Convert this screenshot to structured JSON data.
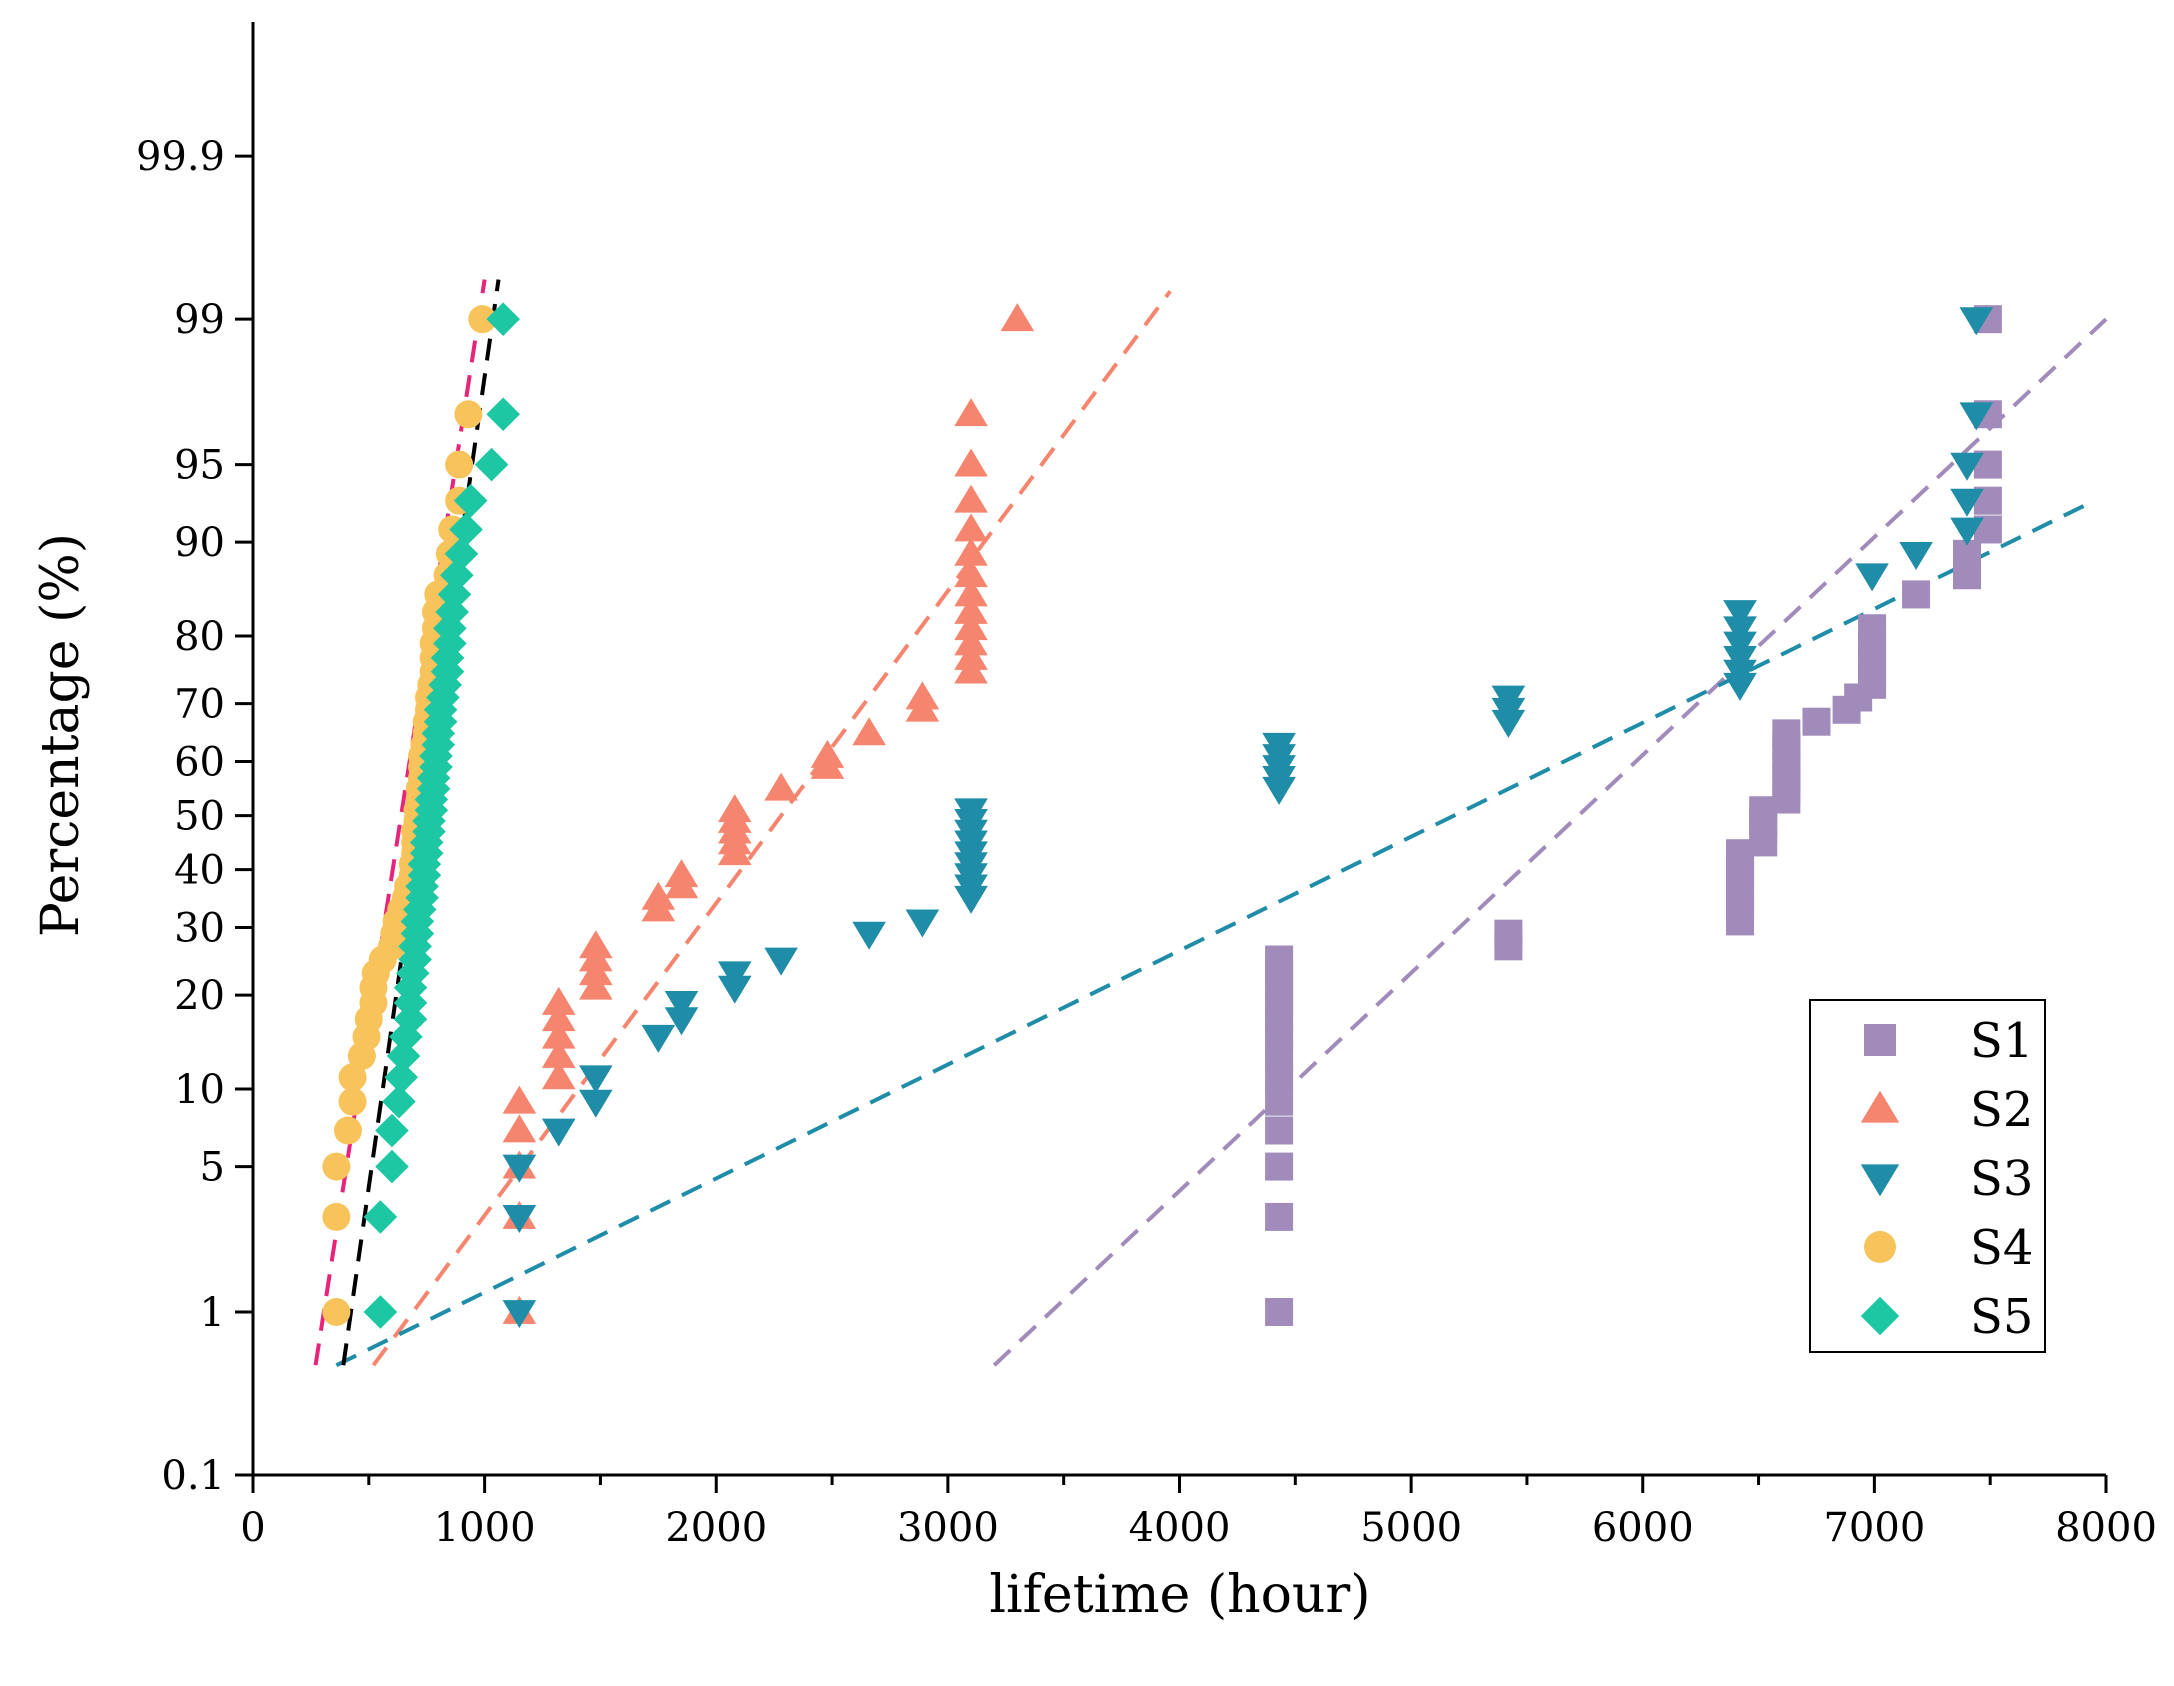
{
  "chart_data": {
    "type": "scatter",
    "title": "",
    "xlabel": "lifetime (hour)",
    "ylabel": "Percentage (%)",
    "xlim": [
      0,
      8000
    ],
    "x_ticks": [
      {
        "value": 0,
        "label": "0"
      },
      {
        "value": 1000,
        "label": "1000"
      },
      {
        "value": 2000,
        "label": "2000"
      },
      {
        "value": 3000,
        "label": "3000"
      },
      {
        "value": 4000,
        "label": "4000"
      },
      {
        "value": 5000,
        "label": "5000"
      },
      {
        "value": 6000,
        "label": "6000"
      },
      {
        "value": 7000,
        "label": "7000"
      },
      {
        "value": 8000,
        "label": "8000"
      }
    ],
    "y_scale": "probability (normal)",
    "ylim": [
      0.1,
      99.99
    ],
    "y_ticks": [
      {
        "value": 0.1,
        "label": "0.1"
      },
      {
        "value": 1,
        "label": "1"
      },
      {
        "value": 5,
        "label": "5"
      },
      {
        "value": 10,
        "label": "10"
      },
      {
        "value": 20,
        "label": "20"
      },
      {
        "value": 30,
        "label": "30"
      },
      {
        "value": 40,
        "label": "40"
      },
      {
        "value": 50,
        "label": "50"
      },
      {
        "value": 60,
        "label": "60"
      },
      {
        "value": 70,
        "label": "70"
      },
      {
        "value": 80,
        "label": "80"
      },
      {
        "value": 90,
        "label": "90"
      },
      {
        "value": 95,
        "label": "95"
      },
      {
        "value": 99,
        "label": "99"
      },
      {
        "value": 99.9,
        "label": "99.9"
      }
    ],
    "legend_position": "bottom-right",
    "series": [
      {
        "name": "S1",
        "marker": "square",
        "color": "#A08BBA",
        "points": [
          [
            4430,
            1
          ],
          [
            4430,
            3
          ],
          [
            4430,
            5
          ],
          [
            4430,
            7
          ],
          [
            4430,
            9
          ],
          [
            4430,
            11
          ],
          [
            4430,
            13
          ],
          [
            4430,
            15
          ],
          [
            4430,
            17
          ],
          [
            4430,
            19
          ],
          [
            4430,
            21
          ],
          [
            4430,
            23
          ],
          [
            4430,
            25
          ],
          [
            5420,
            27
          ],
          [
            5420,
            29
          ],
          [
            6420,
            31
          ],
          [
            6420,
            33
          ],
          [
            6420,
            35
          ],
          [
            6420,
            37
          ],
          [
            6420,
            39
          ],
          [
            6420,
            41
          ],
          [
            6420,
            43
          ],
          [
            6520,
            45
          ],
          [
            6520,
            47
          ],
          [
            6520,
            49
          ],
          [
            6520,
            51
          ],
          [
            6620,
            53
          ],
          [
            6620,
            55
          ],
          [
            6620,
            57
          ],
          [
            6620,
            59
          ],
          [
            6620,
            61
          ],
          [
            6620,
            63
          ],
          [
            6620,
            65
          ],
          [
            6750,
            67
          ],
          [
            6880,
            69
          ],
          [
            6930,
            71
          ],
          [
            6990,
            73
          ],
          [
            6990,
            75
          ],
          [
            6990,
            77
          ],
          [
            6990,
            79
          ],
          [
            6990,
            81
          ],
          [
            7180,
            85
          ],
          [
            7400,
            87
          ],
          [
            7400,
            89
          ],
          [
            7490,
            91
          ],
          [
            7490,
            93
          ],
          [
            7490,
            95
          ],
          [
            7490,
            97
          ],
          [
            7490,
            99
          ]
        ],
        "fit": {
          "x1": 3200,
          "p1": 0.5,
          "x2": 8000,
          "p2": 99
        }
      },
      {
        "name": "S2",
        "marker": "triangle-up",
        "color": "#F5856E",
        "points": [
          [
            1150,
            1
          ],
          [
            1150,
            3
          ],
          [
            1150,
            5
          ],
          [
            1150,
            7
          ],
          [
            1150,
            9
          ],
          [
            1320,
            11
          ],
          [
            1320,
            13
          ],
          [
            1320,
            15
          ],
          [
            1320,
            17
          ],
          [
            1320,
            19
          ],
          [
            1480,
            21
          ],
          [
            1480,
            23
          ],
          [
            1480,
            25
          ],
          [
            1480,
            27
          ],
          [
            1750,
            33
          ],
          [
            1750,
            35
          ],
          [
            1850,
            37
          ],
          [
            1850,
            39
          ],
          [
            2080,
            43
          ],
          [
            2080,
            45
          ],
          [
            2080,
            47
          ],
          [
            2080,
            49
          ],
          [
            2080,
            51
          ],
          [
            2280,
            55
          ],
          [
            2480,
            59
          ],
          [
            2480,
            61
          ],
          [
            2660,
            65
          ],
          [
            2890,
            69
          ],
          [
            2890,
            71
          ],
          [
            3100,
            75
          ],
          [
            3100,
            77
          ],
          [
            3100,
            79
          ],
          [
            3100,
            81
          ],
          [
            3100,
            83
          ],
          [
            3100,
            85
          ],
          [
            3100,
            87
          ],
          [
            3100,
            89
          ],
          [
            3100,
            91
          ],
          [
            3100,
            93
          ],
          [
            3100,
            95
          ],
          [
            3100,
            97
          ],
          [
            3300,
            99
          ]
        ],
        "fit": {
          "x1": 520,
          "p1": 0.5,
          "x2": 3960,
          "p2": 99.3
        }
      },
      {
        "name": "S3",
        "marker": "triangle-down",
        "color": "#1F8DA8",
        "points": [
          [
            1150,
            1
          ],
          [
            1150,
            3
          ],
          [
            1150,
            5
          ],
          [
            1320,
            7
          ],
          [
            1480,
            9
          ],
          [
            1480,
            11
          ],
          [
            1750,
            15
          ],
          [
            1850,
            17
          ],
          [
            1850,
            19
          ],
          [
            2080,
            21
          ],
          [
            2080,
            23
          ],
          [
            2280,
            25
          ],
          [
            2660,
            29
          ],
          [
            2890,
            31
          ],
          [
            3100,
            35
          ],
          [
            3100,
            37
          ],
          [
            3100,
            39
          ],
          [
            3100,
            41
          ],
          [
            3100,
            43
          ],
          [
            3100,
            45
          ],
          [
            3100,
            47
          ],
          [
            3100,
            49
          ],
          [
            3100,
            51
          ],
          [
            4430,
            55
          ],
          [
            4430,
            57
          ],
          [
            4430,
            59
          ],
          [
            4430,
            61
          ],
          [
            4430,
            63
          ],
          [
            5420,
            67
          ],
          [
            5420,
            69
          ],
          [
            5420,
            71
          ],
          [
            6420,
            73
          ],
          [
            6420,
            75
          ],
          [
            6420,
            77
          ],
          [
            6420,
            79
          ],
          [
            6420,
            81
          ],
          [
            6420,
            83
          ],
          [
            6990,
            87
          ],
          [
            7180,
            89
          ],
          [
            7400,
            91
          ],
          [
            7400,
            93
          ],
          [
            7400,
            95
          ],
          [
            7440,
            97
          ],
          [
            7440,
            99
          ]
        ],
        "fit": {
          "x1": 360,
          "p1": 0.5,
          "x2": 7950,
          "p2": 93
        }
      },
      {
        "name": "S4",
        "marker": "circle",
        "color": "#F7C35A",
        "points": [
          [
            360,
            1
          ],
          [
            360,
            3
          ],
          [
            360,
            5
          ],
          [
            410,
            7
          ],
          [
            430,
            9
          ],
          [
            430,
            11
          ],
          [
            470,
            13
          ],
          [
            490,
            15
          ],
          [
            500,
            17
          ],
          [
            520,
            19
          ],
          [
            520,
            21
          ],
          [
            530,
            23
          ],
          [
            560,
            25
          ],
          [
            600,
            27
          ],
          [
            610,
            29
          ],
          [
            620,
            31
          ],
          [
            640,
            33
          ],
          [
            660,
            35
          ],
          [
            670,
            37
          ],
          [
            690,
            39
          ],
          [
            690,
            41
          ],
          [
            700,
            43
          ],
          [
            700,
            45
          ],
          [
            700,
            47
          ],
          [
            710,
            49
          ],
          [
            710,
            51
          ],
          [
            720,
            53
          ],
          [
            720,
            55
          ],
          [
            730,
            57
          ],
          [
            730,
            59
          ],
          [
            730,
            61
          ],
          [
            740,
            63
          ],
          [
            750,
            65
          ],
          [
            750,
            67
          ],
          [
            760,
            69
          ],
          [
            760,
            71
          ],
          [
            770,
            73
          ],
          [
            780,
            75
          ],
          [
            780,
            77
          ],
          [
            780,
            79
          ],
          [
            790,
            81
          ],
          [
            790,
            83
          ],
          [
            800,
            85
          ],
          [
            840,
            87
          ],
          [
            850,
            89
          ],
          [
            860,
            91
          ],
          [
            890,
            93
          ],
          [
            890,
            95
          ],
          [
            930,
            97
          ],
          [
            990,
            99
          ]
        ],
        "fit": {
          "x1": 270,
          "p1": 0.5,
          "x2": 1000,
          "p2": 99.4
        }
      },
      {
        "name": "S5",
        "marker": "diamond",
        "color": "#1DC7A3",
        "points": [
          [
            550,
            1
          ],
          [
            550,
            3
          ],
          [
            600,
            5
          ],
          [
            600,
            7
          ],
          [
            630,
            9
          ],
          [
            640,
            11
          ],
          [
            650,
            13
          ],
          [
            660,
            15
          ],
          [
            680,
            17
          ],
          [
            680,
            19
          ],
          [
            680,
            21
          ],
          [
            690,
            23
          ],
          [
            700,
            25
          ],
          [
            700,
            27
          ],
          [
            710,
            29
          ],
          [
            710,
            31
          ],
          [
            720,
            33
          ],
          [
            730,
            35
          ],
          [
            730,
            37
          ],
          [
            740,
            39
          ],
          [
            740,
            41
          ],
          [
            750,
            43
          ],
          [
            750,
            45
          ],
          [
            760,
            47
          ],
          [
            760,
            49
          ],
          [
            770,
            51
          ],
          [
            770,
            53
          ],
          [
            780,
            55
          ],
          [
            780,
            57
          ],
          [
            790,
            59
          ],
          [
            790,
            61
          ],
          [
            800,
            63
          ],
          [
            800,
            65
          ],
          [
            810,
            67
          ],
          [
            810,
            69
          ],
          [
            820,
            71
          ],
          [
            830,
            73
          ],
          [
            840,
            75
          ],
          [
            840,
            77
          ],
          [
            850,
            79
          ],
          [
            850,
            81
          ],
          [
            860,
            83
          ],
          [
            870,
            85
          ],
          [
            880,
            87
          ],
          [
            900,
            89
          ],
          [
            920,
            91
          ],
          [
            940,
            93
          ],
          [
            1030,
            95
          ],
          [
            1080,
            97
          ],
          [
            1080,
            99
          ]
        ],
        "fit": {
          "x1": 390,
          "p1": 0.5,
          "x2": 1060,
          "p2": 99.4
        }
      }
    ],
    "extra_fits": [
      {
        "name": "S4 fit",
        "color": "#E8237A",
        "x1": 270,
        "p1": 0.5,
        "x2": 1000,
        "p2": 99.4
      },
      {
        "name": "S5 fit",
        "color": "#000000",
        "x1": 390,
        "p1": 0.5,
        "x2": 1060,
        "p2": 99.4
      }
    ]
  }
}
